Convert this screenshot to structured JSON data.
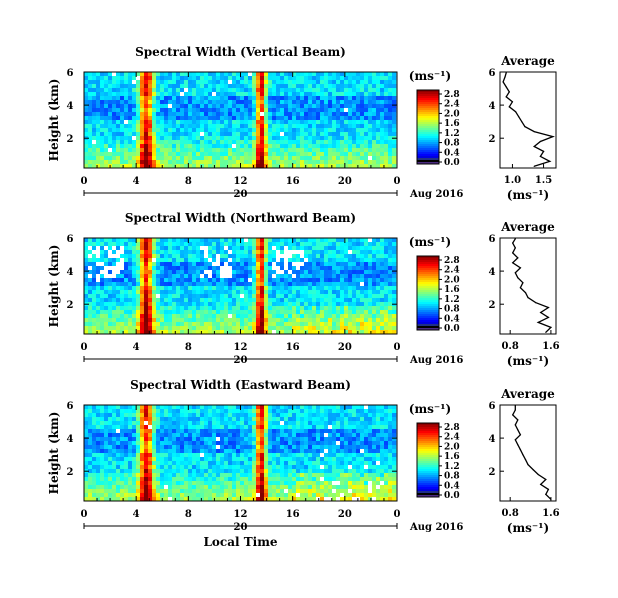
{
  "chart_data": [
    {
      "type": "heatmap",
      "title": "Spectral Width (Vertical Beam)",
      "ylabel": "Height (km)",
      "xticks": [
        "0",
        "4",
        "8",
        "12",
        "16",
        "20",
        "0"
      ],
      "yticks": [
        "6",
        "4",
        "2"
      ],
      "date_tick": "20",
      "date_label": "Aug 2016",
      "xlim": [
        0,
        24
      ],
      "ylim": [
        0.2,
        6
      ],
      "colorbar": {
        "unit": "(ms⁻¹)",
        "ticks": [
          "2.8",
          "2.4",
          "2.0",
          "1.6",
          "1.2",
          "0.8",
          "0.4",
          "0.0"
        ],
        "range": [
          0,
          3.0
        ]
      },
      "profile": {
        "title": "Average",
        "xlabel": "(ms⁻¹)",
        "xticks": [
          "1.0",
          "1.5"
        ],
        "yticks": [
          "6",
          "4",
          "2"
        ],
        "xlim": [
          0.8,
          1.7
        ],
        "ylim": [
          0.2,
          6
        ],
        "height": [
          0.3,
          0.6,
          0.9,
          1.2,
          1.5,
          1.8,
          2.1,
          2.4,
          2.7,
          3.0,
          3.3,
          3.6,
          3.9,
          4.2,
          4.5,
          4.8,
          5.1,
          5.4,
          5.7,
          5.95
        ],
        "value": [
          1.35,
          1.6,
          1.45,
          1.5,
          1.35,
          1.45,
          1.65,
          1.35,
          1.2,
          1.15,
          1.1,
          1.05,
          0.95,
          1.0,
          0.9,
          0.95,
          0.9,
          0.85,
          0.88,
          0.9
        ]
      }
    },
    {
      "type": "heatmap",
      "title": "Spectral Width (Northward Beam)",
      "ylabel": "Height (km)",
      "xticks": [
        "0",
        "4",
        "8",
        "12",
        "16",
        "20",
        "0"
      ],
      "yticks": [
        "6",
        "4",
        "2"
      ],
      "date_tick": "20",
      "date_label": "Aug 2016",
      "xlim": [
        0,
        24
      ],
      "ylim": [
        0.2,
        6
      ],
      "colorbar": {
        "unit": "(ms⁻¹)",
        "ticks": [
          "2.8",
          "2.4",
          "2.0",
          "1.6",
          "1.2",
          "0.8",
          "0.4",
          "0.0"
        ],
        "range": [
          0,
          3.0
        ]
      },
      "profile": {
        "title": "Average",
        "xlabel": "(ms⁻¹)",
        "xticks": [
          "0.8",
          "1.6"
        ],
        "yticks": [
          "6",
          "4",
          "2"
        ],
        "xlim": [
          0.6,
          1.7
        ],
        "ylim": [
          0.2,
          6
        ],
        "height": [
          0.3,
          0.6,
          0.9,
          1.2,
          1.5,
          1.8,
          2.1,
          2.4,
          2.7,
          3.0,
          3.3,
          3.6,
          3.9,
          4.2,
          4.5,
          4.8,
          5.1,
          5.4,
          5.7,
          5.95
        ],
        "value": [
          1.5,
          1.6,
          1.35,
          1.55,
          1.4,
          1.55,
          1.3,
          1.15,
          1.1,
          1.0,
          1.05,
          0.95,
          0.9,
          1.0,
          0.85,
          0.95,
          0.85,
          0.9,
          0.85,
          0.9
        ]
      }
    },
    {
      "type": "heatmap",
      "title": "Spectral Width (Eastward Beam)",
      "ylabel": "Height (km)",
      "xlabel": "Local Time",
      "xticks": [
        "0",
        "4",
        "8",
        "12",
        "16",
        "20",
        "0"
      ],
      "yticks": [
        "6",
        "4",
        "2"
      ],
      "date_tick": "20",
      "date_label": "Aug 2016",
      "xlim": [
        0,
        24
      ],
      "ylim": [
        0.2,
        6
      ],
      "colorbar": {
        "unit": "(ms⁻¹)",
        "ticks": [
          "2.8",
          "2.4",
          "2.0",
          "1.6",
          "1.2",
          "0.8",
          "0.4",
          "0.0"
        ],
        "range": [
          0,
          3.0
        ]
      },
      "profile": {
        "title": "Average",
        "xlabel": "(ms⁻¹)",
        "xticks": [
          "0.8",
          "1.6"
        ],
        "yticks": [
          "6",
          "4",
          "2"
        ],
        "xlim": [
          0.6,
          1.7
        ],
        "ylim": [
          0.2,
          6
        ],
        "height": [
          0.3,
          0.6,
          0.9,
          1.2,
          1.5,
          1.8,
          2.1,
          2.4,
          2.7,
          3.0,
          3.3,
          3.6,
          3.9,
          4.2,
          4.5,
          4.8,
          5.1,
          5.4,
          5.7,
          5.95
        ],
        "value": [
          1.6,
          1.5,
          1.55,
          1.4,
          1.5,
          1.35,
          1.25,
          1.15,
          1.1,
          1.05,
          1.0,
          0.95,
          0.9,
          1.0,
          0.95,
          0.9,
          0.95,
          0.85,
          0.9,
          0.9
        ]
      }
    }
  ]
}
